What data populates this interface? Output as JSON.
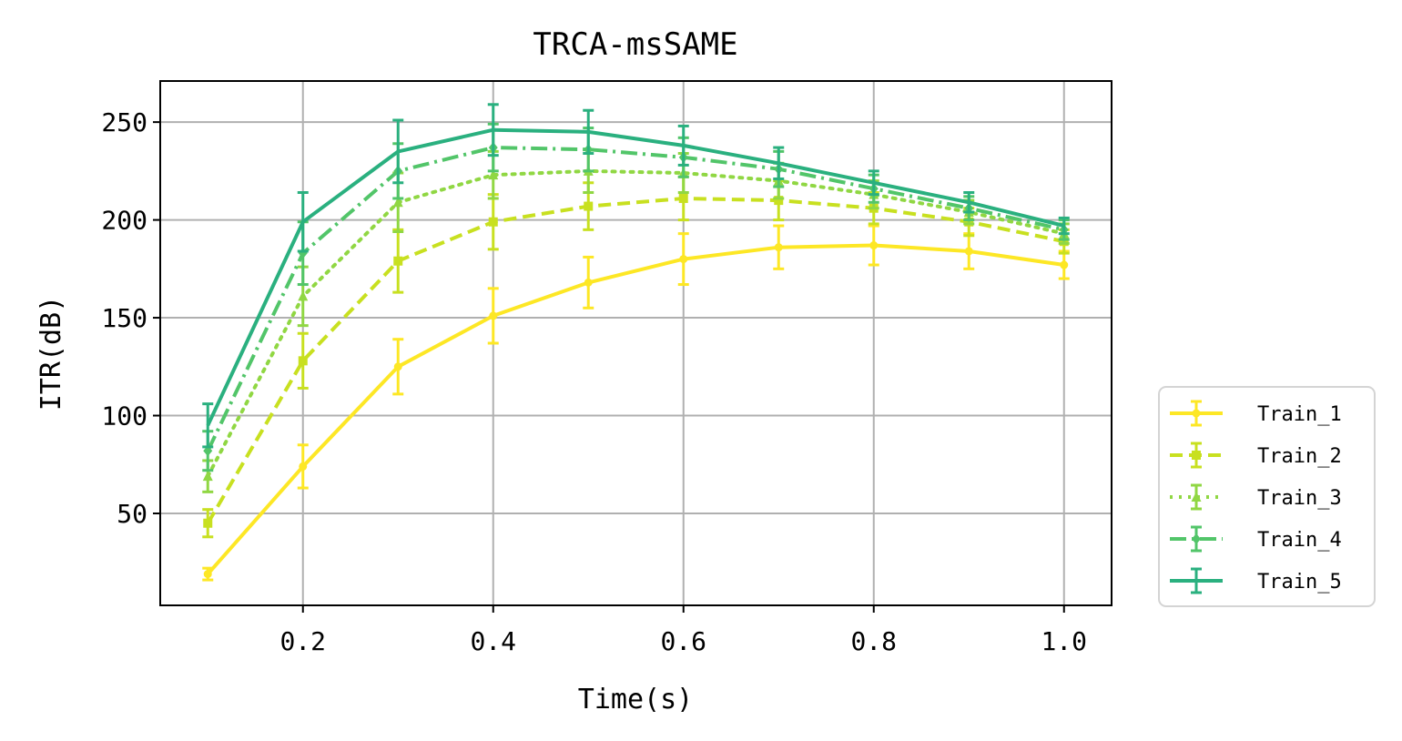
{
  "chart_data": {
    "type": "line",
    "title": "TRCA-msSAME",
    "xlabel": "Time(s)",
    "ylabel": "ITR(dB)",
    "x": [
      0.1,
      0.2,
      0.3,
      0.4,
      0.5,
      0.6,
      0.7,
      0.8,
      0.9,
      1.0
    ],
    "xlim": [
      0.05,
      1.05
    ],
    "ylim": [
      3,
      271
    ],
    "xticks": [
      0.2,
      0.4,
      0.6,
      0.8,
      1.0
    ],
    "xtick_labels": [
      "0.2",
      "0.4",
      "0.6",
      "0.8",
      "1.0"
    ],
    "yticks": [
      50,
      100,
      150,
      200,
      250
    ],
    "ytick_labels": [
      "50",
      "100",
      "150",
      "200",
      "250"
    ],
    "grid": true,
    "legend_position": "outside-bottom-right",
    "series": [
      {
        "name": "Train_1",
        "color": "#fde725",
        "line_style": "solid",
        "marker": "point",
        "values": [
          19,
          74,
          125,
          151,
          168,
          180,
          186,
          187,
          184,
          177
        ],
        "errors": [
          3,
          11,
          14,
          14,
          13,
          13,
          11,
          10,
          9,
          7
        ]
      },
      {
        "name": "Train_2",
        "color": "#c8e020",
        "line_style": "dashed",
        "marker": "square",
        "values": [
          45,
          128,
          179,
          199,
          207,
          211,
          210,
          206,
          199,
          189
        ],
        "errors": [
          7,
          14,
          16,
          14,
          12,
          11,
          10,
          8,
          7,
          6
        ]
      },
      {
        "name": "Train_3",
        "color": "#90d743",
        "line_style": "dotted",
        "marker": "triangle",
        "values": [
          69,
          161,
          209,
          223,
          225,
          224,
          220,
          213,
          204,
          193
        ],
        "errors": [
          8,
          15,
          15,
          12,
          11,
          10,
          9,
          7,
          6,
          5
        ]
      },
      {
        "name": "Train_4",
        "color": "#52c569",
        "line_style": "dashdot",
        "marker": "diamond",
        "values": [
          82,
          183,
          225,
          237,
          236,
          232,
          226,
          216,
          206,
          195
        ],
        "errors": [
          10,
          16,
          14,
          12,
          11,
          10,
          9,
          7,
          6,
          5
        ]
      },
      {
        "name": "Train_5",
        "color": "#2ab07f",
        "line_style": "solid",
        "marker": "none",
        "values": [
          95,
          199,
          235,
          246,
          245,
          238,
          229,
          219,
          209,
          197
        ],
        "errors": [
          11,
          15,
          16,
          13,
          11,
          10,
          8,
          6,
          5,
          4
        ]
      }
    ]
  }
}
